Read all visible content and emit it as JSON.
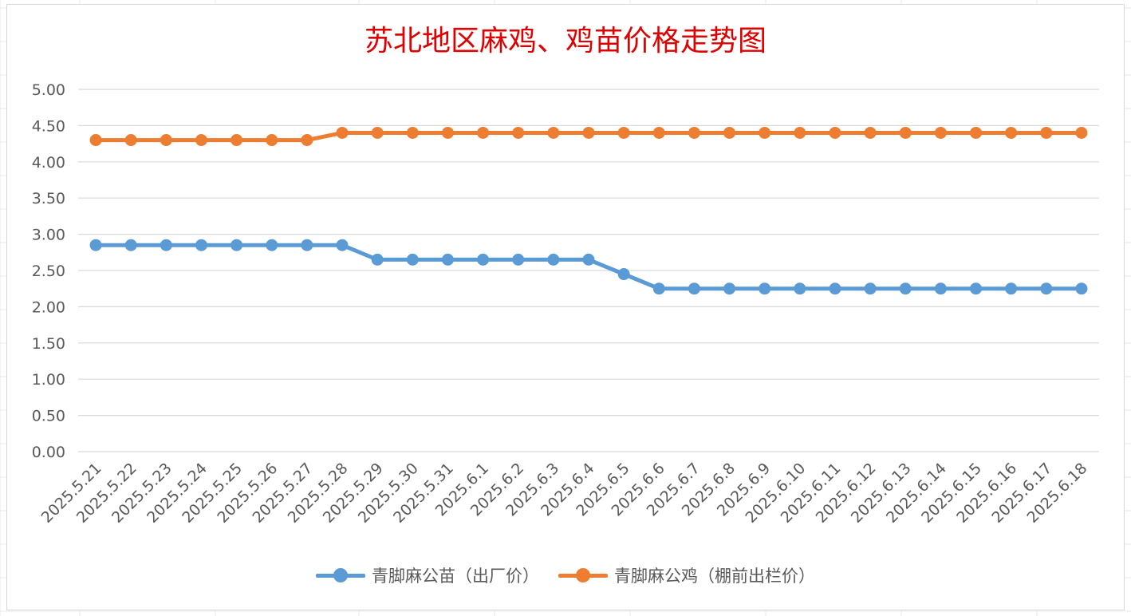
{
  "chart_data": {
    "type": "line",
    "title": "苏北地区麻鸡、鸡苗价格走势图",
    "categories": [
      "2025.5.21",
      "2025.5.22",
      "2025.5.23",
      "2025.5.24",
      "2025.5.25",
      "2025.5.26",
      "2025.5.27",
      "2025.5.28",
      "2025.5.29",
      "2025.5.30",
      "2025.5.31",
      "2025.6.1",
      "2025.6.2",
      "2025.6.3",
      "2025.6.4",
      "2025.6.5",
      "2025.6.6",
      "2025.6.7",
      "2025.6.8",
      "2025.6.9",
      "2025.6.10",
      "2025.6.11",
      "2025.6.12",
      "2025.6.13",
      "2025.6.14",
      "2025.6.15",
      "2025.6.16",
      "2025.6.17",
      "2025.6.18"
    ],
    "series": [
      {
        "name": "青脚麻公苗（出厂价）",
        "color": "#5b9bd5",
        "values": [
          2.85,
          2.85,
          2.85,
          2.85,
          2.85,
          2.85,
          2.85,
          2.85,
          2.65,
          2.65,
          2.65,
          2.65,
          2.65,
          2.65,
          2.65,
          2.45,
          2.25,
          2.25,
          2.25,
          2.25,
          2.25,
          2.25,
          2.25,
          2.25,
          2.25,
          2.25,
          2.25,
          2.25,
          2.25
        ]
      },
      {
        "name": "青脚麻公鸡（棚前出栏价）",
        "color": "#ed7d31",
        "values": [
          4.3,
          4.3,
          4.3,
          4.3,
          4.3,
          4.3,
          4.3,
          4.4,
          4.4,
          4.4,
          4.4,
          4.4,
          4.4,
          4.4,
          4.4,
          4.4,
          4.4,
          4.4,
          4.4,
          4.4,
          4.4,
          4.4,
          4.4,
          4.4,
          4.4,
          4.4,
          4.4,
          4.4,
          4.4
        ]
      }
    ],
    "ylim": [
      0,
      5
    ],
    "yticks": [
      "0.00",
      "0.50",
      "1.00",
      "1.50",
      "2.00",
      "2.50",
      "3.00",
      "3.50",
      "4.00",
      "4.50",
      "5.00"
    ],
    "grid": true,
    "legend_position": "bottom",
    "title_color": "#e00000",
    "axis_text_color": "#595959",
    "gridline_color": "#d9d9d9"
  }
}
